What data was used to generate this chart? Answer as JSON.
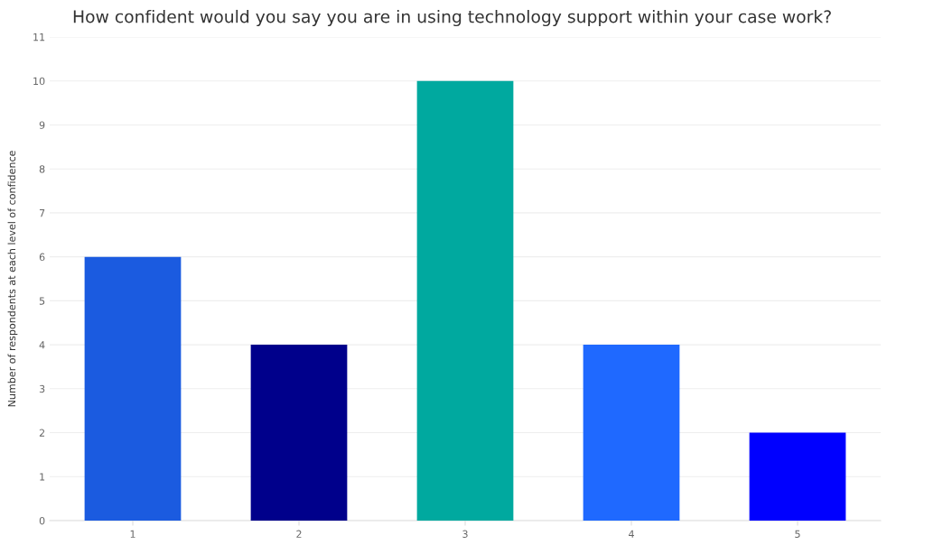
{
  "chart_data": {
    "type": "bar",
    "title": "How confident would you say you are in using technology support within your case work?",
    "ylabel": "Number of respondents at each level of confidence",
    "categories": [
      "1",
      "2",
      "3",
      "4",
      "5"
    ],
    "values": [
      6,
      4,
      10,
      4,
      2
    ],
    "colors": [
      "#1b5be0",
      "#00008b",
      "#00a99f",
      "#1f69ff",
      "#0000ff"
    ],
    "ylim": [
      0,
      11
    ],
    "yticks": [
      0,
      1,
      2,
      3,
      4,
      5,
      6,
      7,
      8,
      9,
      10,
      11
    ],
    "grid": "y"
  }
}
